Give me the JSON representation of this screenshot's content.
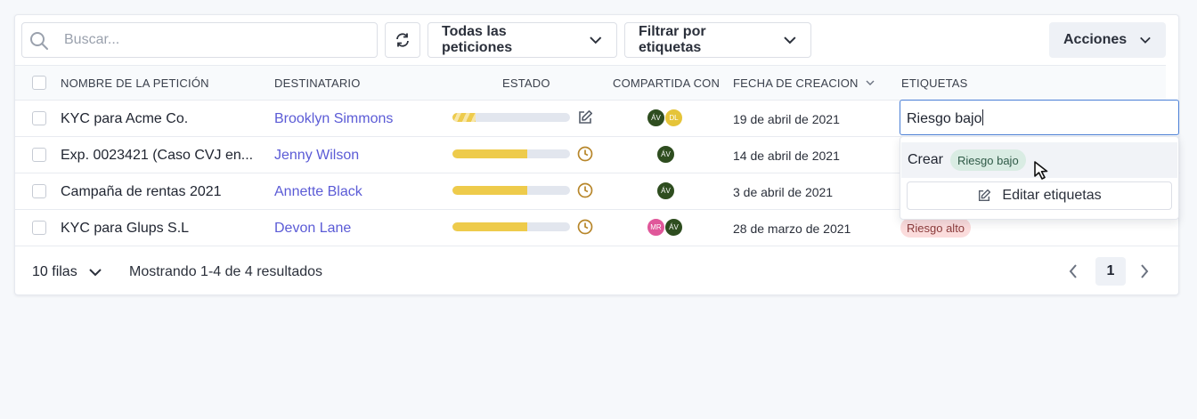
{
  "toolbar": {
    "search_placeholder": "Buscar...",
    "filter_requests_label": "Todas las peticiones",
    "filter_tags_label": "Filtrar por etiquetas",
    "actions_label": "Acciones"
  },
  "table": {
    "columns": {
      "name": "NOMBRE DE LA PETICIÓN",
      "recipient": "DESTINATARIO",
      "status": "ESTADO",
      "shared_with": "COMPARTIDA CON",
      "created": "FECHA DE CREACION",
      "tags": "ETIQUETAS"
    },
    "rows": [
      {
        "name": "KYC para Acme Co.",
        "recipient": "Brooklyn Simmons",
        "progress": 0.2,
        "status_icon": "edit-icon",
        "shared": [
          "ÁV",
          "DL"
        ],
        "created": "19 de abril de 2021",
        "tags": []
      },
      {
        "name": "Exp. 0023421 (Caso CVJ en...",
        "recipient": "Jenny Wilson",
        "progress": 0.64,
        "status_icon": "clock-icon",
        "shared": [
          "ÁV"
        ],
        "created": "14 de abril de 2021",
        "tags": []
      },
      {
        "name": "Campaña de rentas 2021",
        "recipient": "Annette Black",
        "progress": 0.64,
        "status_icon": "clock-icon",
        "shared": [
          "ÁV"
        ],
        "created": "3 de abril de 2021",
        "tags": []
      },
      {
        "name": "KYC para Glups S.L",
        "recipient": "Devon Lane",
        "progress": 0.64,
        "status_icon": "clock-icon",
        "shared": [
          "MR",
          "ÁV"
        ],
        "created": "28 de marzo de 2021",
        "tags": [
          "Riesgo alto"
        ]
      }
    ]
  },
  "footer": {
    "rows_per_page": "10 filas",
    "results_info": "Mostrando 1-4 de 4 resultados",
    "current_page": "1"
  },
  "tag_editor": {
    "input_value": "Riesgo bajo",
    "create_label": "Crear",
    "create_tag": "Riesgo bajo",
    "edit_tags_label": "Editar etiquetas"
  },
  "colors": {
    "link": "#5b5bd6",
    "progress": "#eecb4b",
    "status_icon": "#b7862a",
    "avatar_green": "#2e4d1f",
    "avatar_yellow": "#e5c439",
    "avatar_pink": "#e0579a",
    "tag_high_bg": "#fbdcdc",
    "tag_low_bg": "#d9ece3",
    "focus_border": "#4a7fd6"
  }
}
